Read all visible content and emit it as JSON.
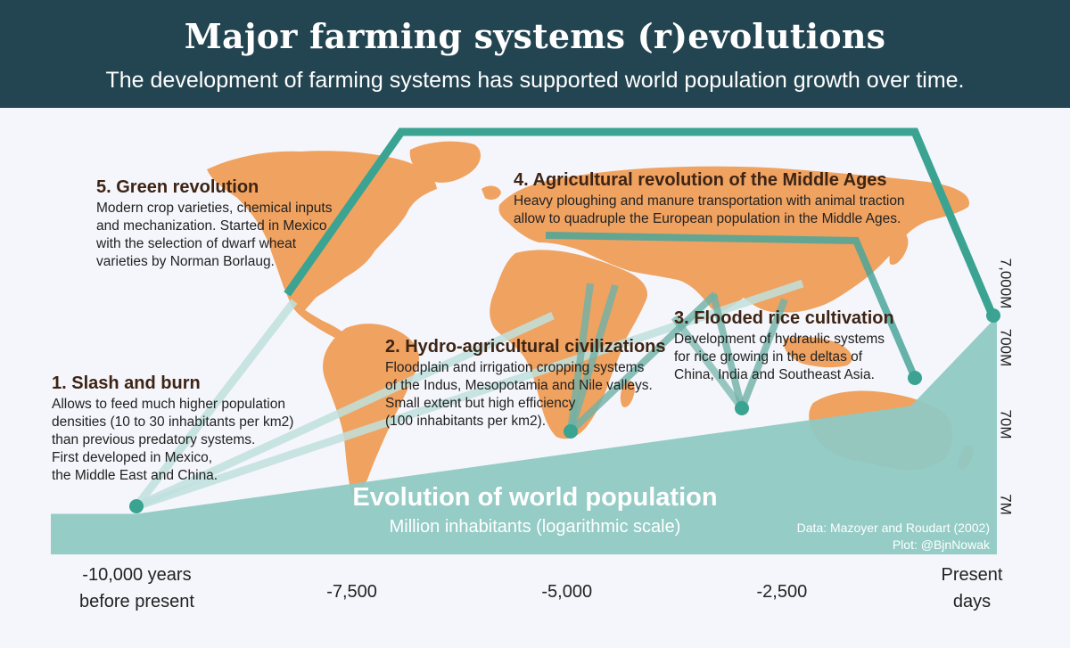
{
  "header": {
    "title": "Major farming systems (r)evolutions",
    "subtitle": "The development of farming systems has supported world population growth over time."
  },
  "colors": {
    "header_bg": "#234451",
    "map": "#f0a260",
    "population_area": "#8fc9c3",
    "accent_teal": "#3aa391",
    "label_dark": "#3d2414",
    "text_dark": "#222222"
  },
  "chart_data": {
    "type": "area",
    "title": "Evolution of world population",
    "subtitle": "Million inhabitants (logarithmic scale)",
    "x_axis": {
      "range": [
        -11000,
        0
      ],
      "ticks": [
        {
          "value": -10000,
          "lines": [
            "-10,000 years",
            "before present"
          ]
        },
        {
          "value": -7500,
          "lines": [
            "-7,500"
          ]
        },
        {
          "value": -5000,
          "lines": [
            "-5,000"
          ]
        },
        {
          "value": -2500,
          "lines": [
            "-2,500"
          ]
        },
        {
          "value": 0,
          "lines": [
            "Present",
            "days"
          ]
        }
      ]
    },
    "y_axis": {
      "scale": "log",
      "range": [
        4,
        7000
      ],
      "ticks": [
        {
          "value": 7,
          "label": "7M"
        },
        {
          "value": 70,
          "label": "70M"
        },
        {
          "value": 700,
          "label": "700M"
        },
        {
          "value": 7000,
          "label": "7,000M"
        }
      ]
    },
    "population": [
      {
        "x": -11000,
        "y": 5
      },
      {
        "x": -10000,
        "y": 5
      },
      {
        "x": -1000,
        "y": 240
      },
      {
        "x": 0,
        "y": 6000
      }
    ],
    "milestones": [
      {
        "id": 1,
        "x": -10000,
        "y": 5.2,
        "title": "1. Slash and burn",
        "lines": [
          "Allows to feed much higher population",
          "densities (10 to 30 inhabitants per km2)",
          "than previous predatory systems.",
          "First developed in Mexico,",
          "the Middle East and China."
        ]
      },
      {
        "id": 2,
        "x": -5000,
        "y": 44,
        "title": "2. Hydro-agricultural civilizations",
        "lines": [
          "Floodplain and irrigation cropping systems",
          "of the Indus, Mesopotamia and Nile valleys.",
          "Small extent but high efficiency",
          "(100 inhabitants per km2)."
        ]
      },
      {
        "id": 3,
        "x": -3000,
        "y": 88,
        "title": "3. Flooded rice cultivation",
        "lines": [
          "Development of hydraulic systems",
          "for rice growing in the deltas of",
          "China, India and Southeast Asia."
        ]
      },
      {
        "id": 4,
        "x": -1000,
        "y": 240,
        "title": "4. Agricultural revolution of the Middle Ages",
        "lines": [
          "Heavy ploughing and manure transportation with animal traction",
          "allow to quadruple the European population in the Middle Ages."
        ]
      },
      {
        "id": 5,
        "x": 0,
        "y": 6000,
        "title": "5. Green revolution",
        "lines": [
          "Modern crop varieties, chemical inputs",
          "and mechanization. Started in Mexico",
          "with the selection of dwarf wheat",
          "varieties by Norman Borlaug."
        ]
      }
    ],
    "credits": [
      "Data: Mazoyer and Roudart (2002)",
      "Plot: @BjnNowak"
    ]
  }
}
